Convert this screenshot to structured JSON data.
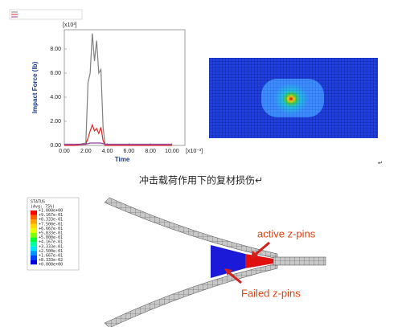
{
  "chart_data": {
    "type": "line",
    "ylabel": "Impact Force (lb)",
    "xlabel": "Time",
    "y_multiplier": "[x10³]",
    "x_multiplier": "[x10⁻³]",
    "x": [
      0,
      1,
      2.0,
      2.2,
      2.4,
      2.6,
      2.8,
      3.0,
      3.2,
      3.4,
      3.6,
      3.8,
      5,
      10
    ],
    "series": [
      {
        "color": "#808080",
        "values": [
          0,
          0,
          0.2,
          5.2,
          6.0,
          9.3,
          7.0,
          8.7,
          6.0,
          6.3,
          1.5,
          0,
          0,
          0
        ]
      },
      {
        "color": "#e02020",
        "values": [
          0,
          0,
          0.1,
          0.6,
          1.2,
          1.7,
          1.2,
          1.4,
          1.0,
          1.5,
          0.4,
          0,
          0,
          0
        ]
      },
      {
        "color": "#9040a0",
        "values": [
          0.1,
          0.1,
          0.1,
          0.15,
          0.2,
          0.2,
          0.2,
          0.2,
          0.2,
          0.2,
          0.15,
          0.1,
          0.1,
          0.1
        ]
      }
    ],
    "xlim": [
      0,
      11.2
    ],
    "ylim": [
      0,
      9.6
    ],
    "xticks": [
      {
        "value": 0,
        "label": "0.00"
      },
      {
        "value": 2,
        "label": "2.00"
      },
      {
        "value": 4,
        "label": "4.00"
      },
      {
        "value": 6,
        "label": "6.00"
      },
      {
        "value": 8,
        "label": "8.00"
      },
      {
        "value": 10,
        "label": "10.00"
      }
    ],
    "yticks": [
      {
        "value": 0,
        "label": "0.00"
      },
      {
        "value": 2,
        "label": "2.00"
      },
      {
        "value": 4,
        "label": "4.00"
      },
      {
        "value": 6,
        "label": "6.00"
      },
      {
        "value": 8,
        "label": "8.00"
      }
    ]
  },
  "caption": "冲击载荷作用下的复材损伤↵",
  "return_mark": "↵",
  "fringe_legend": {
    "title": "STATUS",
    "subtitle": "(Avg: 75%)",
    "labels": [
      "+1.000e+00",
      "+9.167e-01",
      "+8.333e-01",
      "+7.500e-01",
      "+6.667e-01",
      "+5.833e-01",
      "+5.000e-01",
      "+4.167e-01",
      "+3.333e-01",
      "+2.500e-01",
      "+1.667e-01",
      "+8.333e-02",
      "+0.000e+00"
    ]
  },
  "annotations": {
    "active": "active z-pins",
    "failed": "Failed z-pins"
  }
}
